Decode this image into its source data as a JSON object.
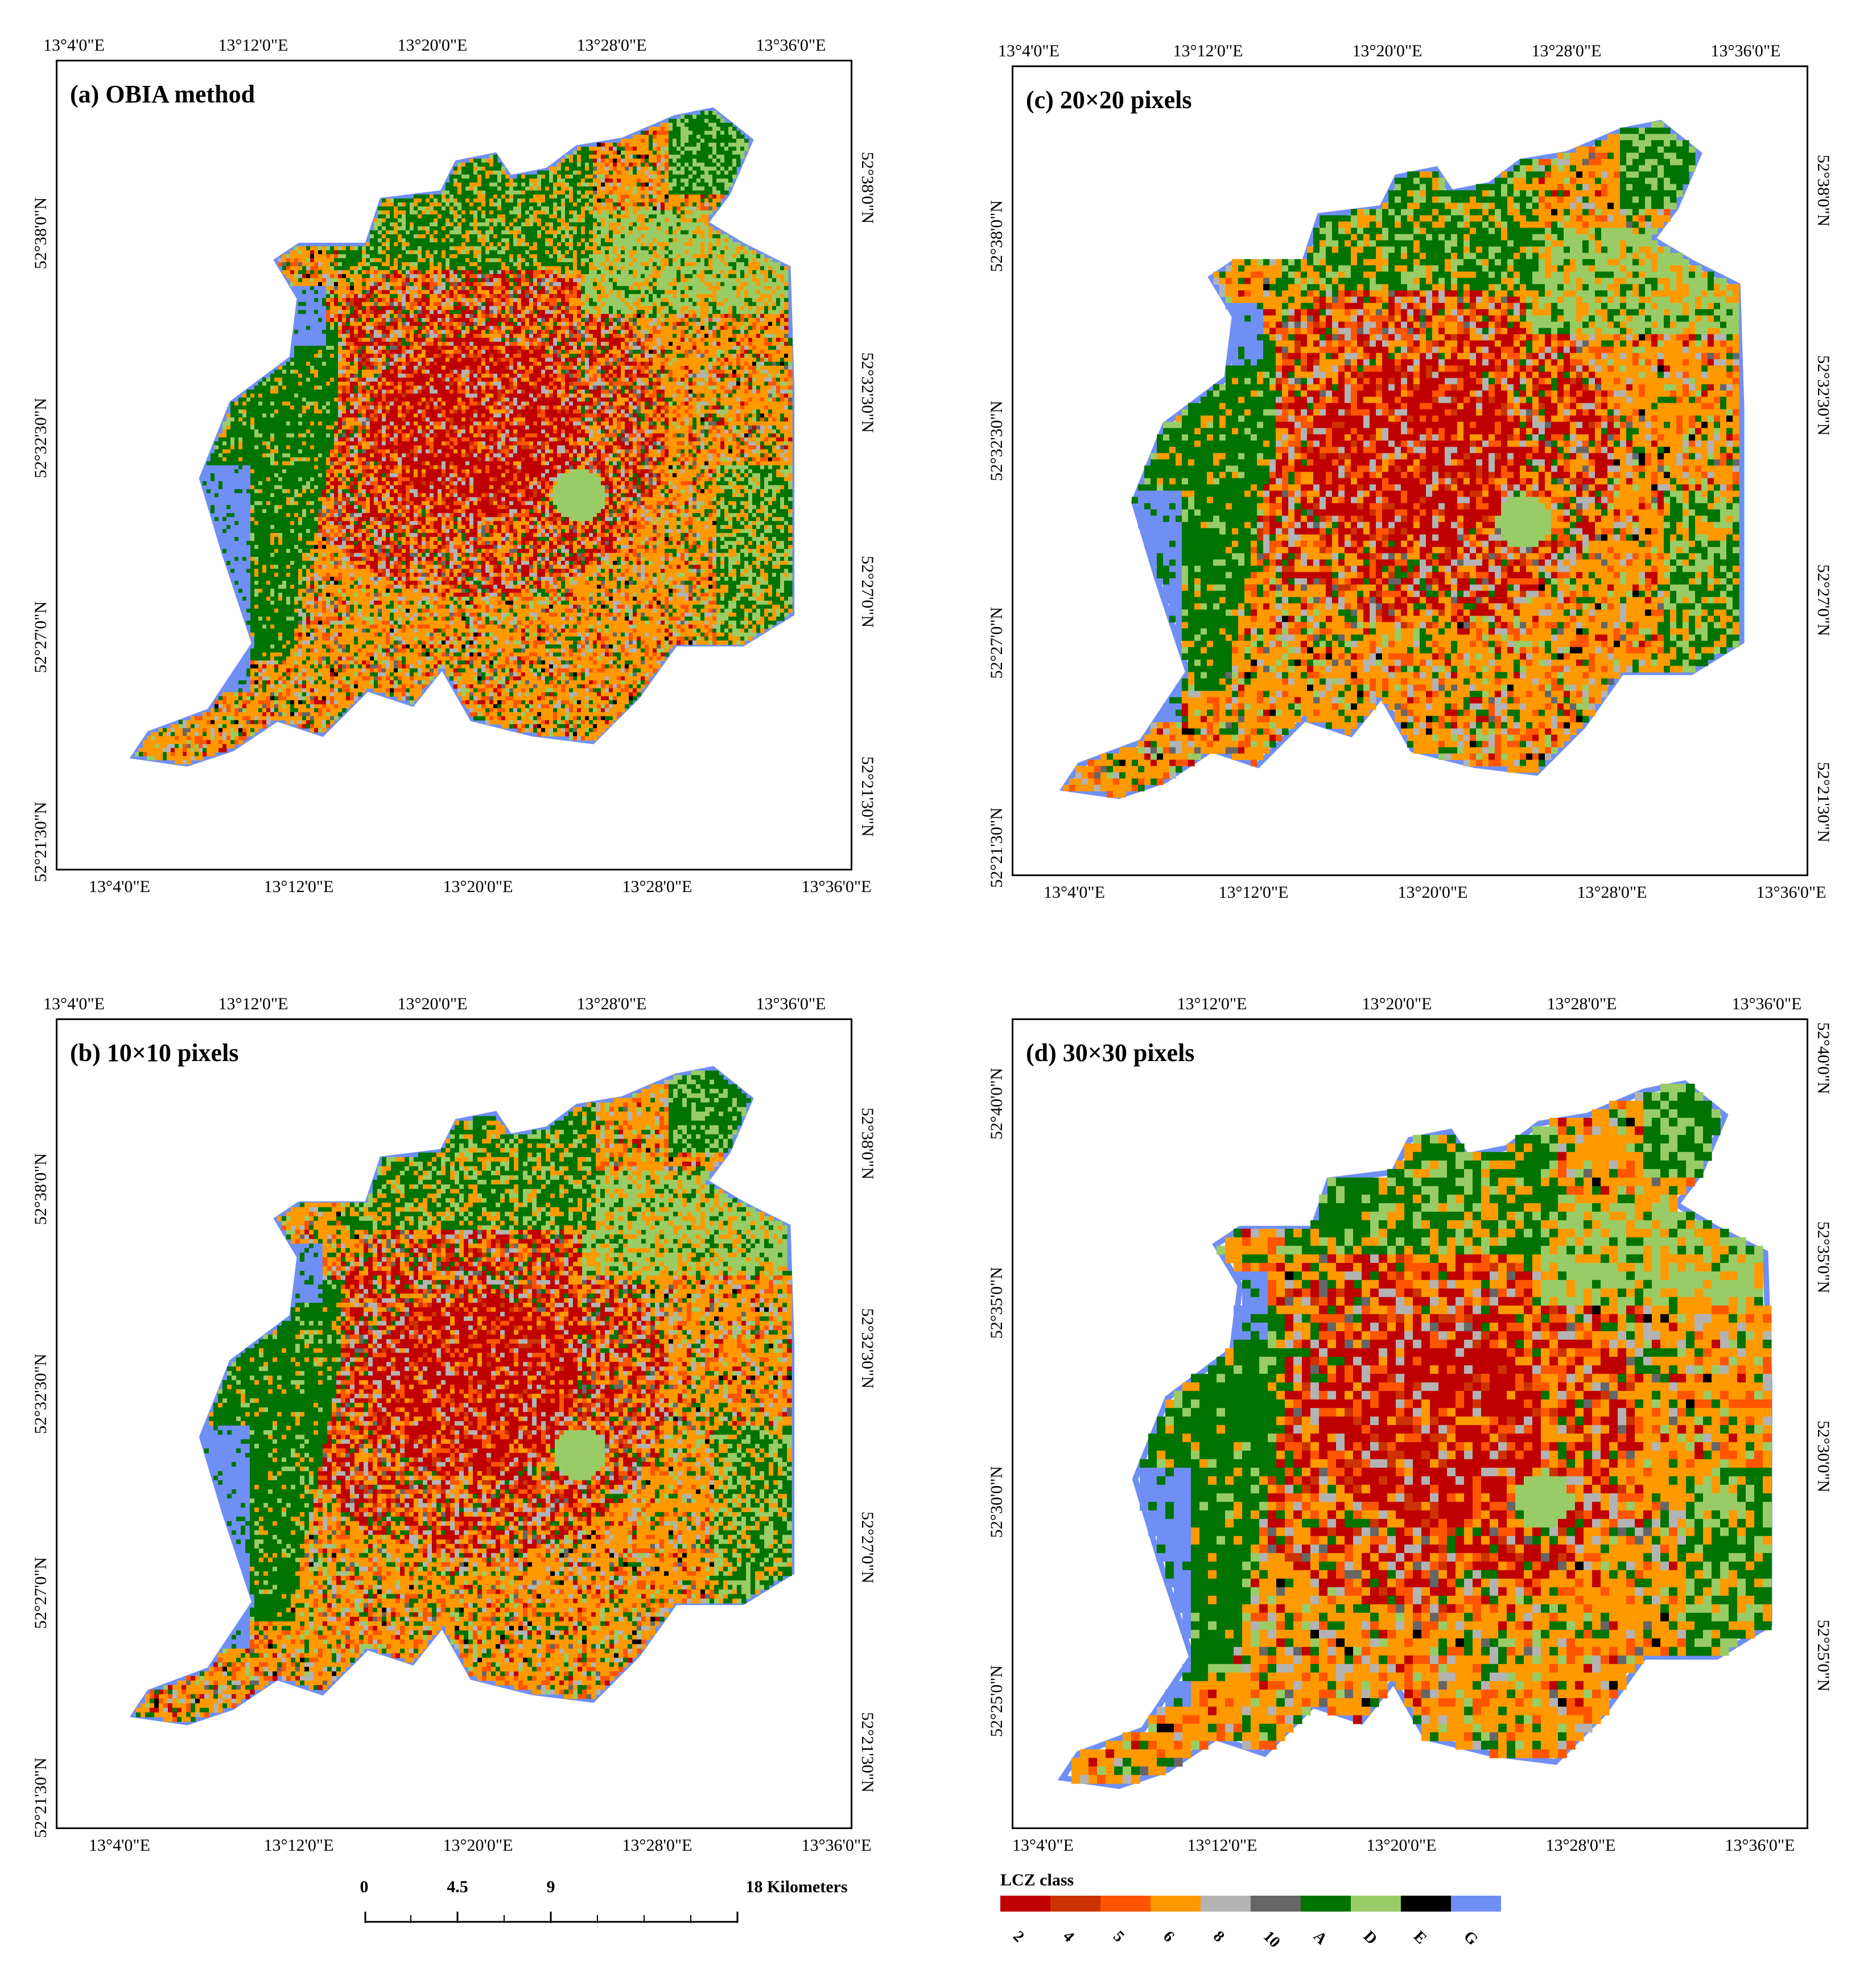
{
  "legend": {
    "title": "LCZ class",
    "classes": [
      {
        "label": "2",
        "color": "#c00000"
      },
      {
        "label": "4",
        "color": "#cc3300"
      },
      {
        "label": "5",
        "color": "#ff5500"
      },
      {
        "label": "6",
        "color": "#ff9900"
      },
      {
        "label": "8",
        "color": "#b3b3b3"
      },
      {
        "label": "10",
        "color": "#666666"
      },
      {
        "label": "A",
        "color": "#007300"
      },
      {
        "label": "D",
        "color": "#99cc66"
      },
      {
        "label": "E",
        "color": "#000000"
      },
      {
        "label": "G",
        "color": "#6f8ff5"
      }
    ]
  },
  "scalebar": {
    "labels": [
      "0",
      "4.5",
      "9",
      "18 Kilometers"
    ]
  },
  "panels": [
    {
      "id": "a",
      "title": "(a) OBIA method",
      "top_ticks": [
        "13°4'0\"E",
        "13°12'0\"E",
        "13°20'0\"E",
        "13°28'0\"E",
        "13°36'0\"E"
      ],
      "bottom_ticks": [
        "13°4'0\"E",
        "13°12'0\"E",
        "13°20'0\"E",
        "13°28'0\"E",
        "13°36'0\"E"
      ],
      "left_ticks": [
        "52°38'0\"N",
        "52°32'30\"N",
        "52°27'0\"N",
        "52°21'30\"N"
      ],
      "right_ticks": [
        "52°38'0\"N",
        "52°32'30\"N",
        "52°27'0\"N",
        "52°21'30\"N"
      ]
    },
    {
      "id": "c",
      "title": "(c) 20×20 pixels",
      "top_ticks": [
        "13°4'0\"E",
        "13°12'0\"E",
        "13°20'0\"E",
        "13°28'0\"E",
        "13°36'0\"E"
      ],
      "bottom_ticks": [
        "13°4'0\"E",
        "13°12'0\"E",
        "13°20'0\"E",
        "13°28'0\"E",
        "13°36'0\"E"
      ],
      "left_ticks": [
        "52°38'0\"N",
        "52°32'30\"N",
        "52°27'0\"N",
        "52°21'30\"N"
      ],
      "right_ticks": [
        "52°38'0\"N",
        "52°32'30\"N",
        "52°27'0\"N",
        "52°21'30\"N"
      ]
    },
    {
      "id": "b",
      "title": "(b) 10×10 pixels",
      "top_ticks": [
        "13°4'0\"E",
        "13°12'0\"E",
        "13°20'0\"E",
        "13°28'0\"E",
        "13°36'0\"E"
      ],
      "bottom_ticks": [
        "13°4'0\"E",
        "13°12'0\"E",
        "13°20'0\"E",
        "13°28'0\"E",
        "13°36'0\"E"
      ],
      "left_ticks": [
        "52°38'0\"N",
        "52°32'30\"N",
        "52°27'0\"N",
        "52°21'30\"N"
      ],
      "right_ticks": [
        "52°38'0\"N",
        "52°32'30\"N",
        "52°27'0\"N",
        "52°21'30\"N"
      ]
    },
    {
      "id": "d",
      "title": "(d) 30×30 pixels",
      "top_ticks": [
        "13°12'0\"E",
        "13°20'0\"E",
        "13°28'0\"E",
        "13°36'0\"E"
      ],
      "bottom_ticks": [
        "13°4'0\"E",
        "13°12'0\"E",
        "13°20'0\"E",
        "13°28'0\"E",
        "13°36'0\"E"
      ],
      "left_ticks": [
        "52°40'0\"N",
        "52°35'0\"N",
        "52°30'0\"N",
        "52°25'0\"N"
      ],
      "right_ticks": [
        "52°40'0\"N",
        "52°35'0\"N",
        "52°30'0\"N",
        "52°25'0\"N"
      ]
    }
  ]
}
